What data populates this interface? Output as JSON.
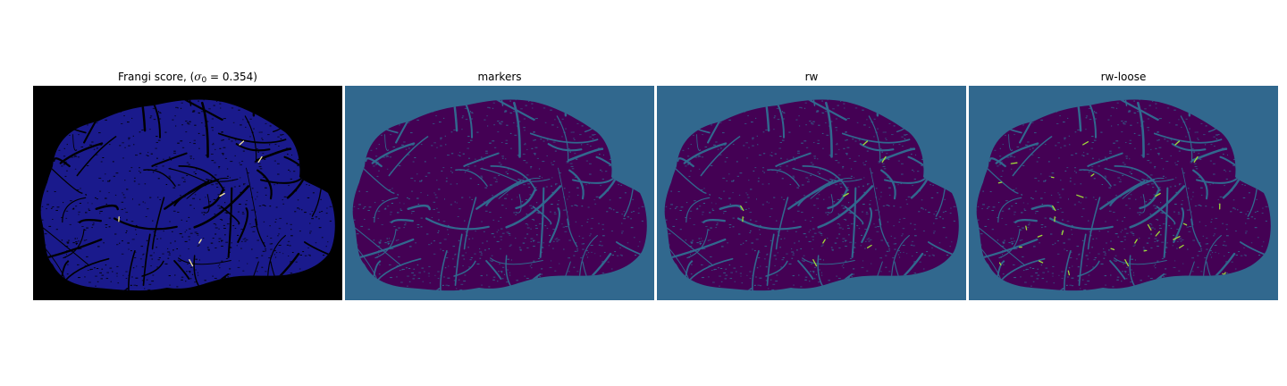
{
  "colors": {
    "page_background": "#ffffff",
    "frangi_background": "#000000",
    "frangi_tissue": "#1a1a8c",
    "frangi_vessels": "#000000",
    "frangi_highlights": "#f5e6a0",
    "label_background": "#31688e",
    "label_tissue": "#440154",
    "label_vessels": "#31688e",
    "label_highlights": "#a0da39"
  },
  "panels": [
    {
      "title": {
        "prefix": "Frangi score, (",
        "symbol": "σ",
        "subscript": "0",
        "suffix": " = 0.354)"
      },
      "style": "frangi"
    },
    {
      "title": {
        "text": "markers"
      },
      "style": "labels",
      "highlight_level": 0
    },
    {
      "title": {
        "text": "rw"
      },
      "style": "labels",
      "highlight_level": 0.25
    },
    {
      "title": {
        "text": "rw-loose"
      },
      "style": "labels",
      "highlight_level": 1
    }
  ]
}
